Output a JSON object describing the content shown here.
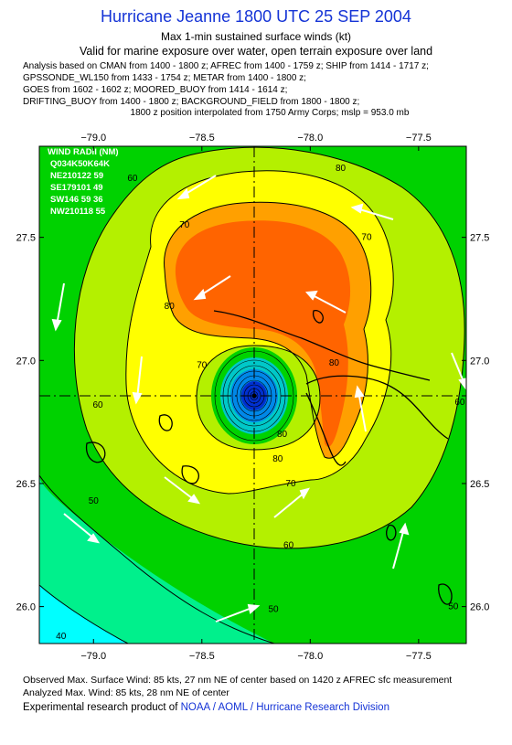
{
  "header": {
    "title": "Hurricane Jeanne 1800 UTC 25 SEP 2004",
    "subtitle": "Max 1-min sustained surface winds (kt)",
    "valid_line": "Valid for marine exposure over water, open terrain exposure over land",
    "analysis_lines": [
      "Analysis based on  CMAN from 1400 - 1800 z;  AFREC from 1400 - 1759 z;  SHIP from 1414 - 1717 z;",
      "GPSSONDE_WL150 from 1433 - 1754 z;  METAR from 1400 - 1800 z;",
      "GOES from 1602 - 1602 z;  MOORED_BUOY from 1414 - 1614 z;",
      "DRIFTING_BUOY from 1400 - 1800 z;  BACKGROUND_FIELD from 1800 - 1800 z;"
    ],
    "interpolation_note": "1800 z position interpolated from 1750 Army Corps; mslp = 953.0 mb"
  },
  "chart_data": {
    "type": "contour",
    "xlim": [
      -79.25,
      -77.28
    ],
    "ylim": [
      25.85,
      27.87
    ],
    "x_ticks": [
      -79.0,
      -78.5,
      -78.0,
      -77.5
    ],
    "x_tick_labels": [
      "−79.0",
      "−78.5",
      "−78.0",
      "−77.5"
    ],
    "y_ticks": [
      26.0,
      26.5,
      27.0,
      27.5
    ],
    "y_tick_labels": [
      "26.0",
      "26.5",
      "27.0",
      "27.5"
    ],
    "center": {
      "lon": -78.2,
      "lat": 26.85
    },
    "contour_levels": [
      40,
      50,
      60,
      70,
      80
    ],
    "contour_labels": [
      {
        "text": "80",
        "lon": -77.86,
        "lat": 27.78
      },
      {
        "text": "60",
        "lon": -78.82,
        "lat": 27.74
      },
      {
        "text": "70",
        "lon": -78.58,
        "lat": 27.55
      },
      {
        "text": "70",
        "lon": -77.74,
        "lat": 27.5
      },
      {
        "text": "80",
        "lon": -78.65,
        "lat": 27.22
      },
      {
        "text": "80",
        "lon": -77.89,
        "lat": 26.99
      },
      {
        "text": "70",
        "lon": -78.5,
        "lat": 26.98
      },
      {
        "text": "60",
        "lon": -78.98,
        "lat": 26.82
      },
      {
        "text": "60",
        "lon": -77.31,
        "lat": 26.83
      },
      {
        "text": "70",
        "lon": -78.09,
        "lat": 26.5
      },
      {
        "text": "80",
        "lon": -78.15,
        "lat": 26.6
      },
      {
        "text": "80",
        "lon": -78.13,
        "lat": 26.7
      },
      {
        "text": "50",
        "lon": -79.0,
        "lat": 26.43
      },
      {
        "text": "60",
        "lon": -78.1,
        "lat": 26.25
      },
      {
        "text": "50",
        "lon": -78.17,
        "lat": 25.99
      },
      {
        "text": "50",
        "lon": -77.34,
        "lat": 26.0
      },
      {
        "text": "40",
        "lon": -79.15,
        "lat": 25.88
      }
    ],
    "wind_radii": {
      "title": "WIND RADII (NM)",
      "header": "Q034K50K64K",
      "rows": [
        "NE210122 59",
        "SE179101 49",
        "SW146 59 36",
        "NW210118 55"
      ]
    },
    "colors": {
      "below_40": "#00ffff",
      "40_50": "#00f08c",
      "50_60": "#00d200",
      "60_70": "#b4f000",
      "70_80": "#ffff00",
      "80_90": "#ffa000",
      "90_plus": "#ff6400",
      "eye_outer": "#00c8c8",
      "eye_mid": "#0088e8",
      "eye_core": "#0030d0"
    }
  },
  "footer": {
    "observed": "Observed Max. Surface Wind: 85 kts, 27 nm NE of center based on 1420 z AFREC sfc measurement",
    "analyzed": "Analyzed Max. Wind: 85 kts, 28 nm NE of center",
    "product_prefix": "Experimental research product of ",
    "product_link": "NOAA / AOML / Hurricane Research Division"
  }
}
